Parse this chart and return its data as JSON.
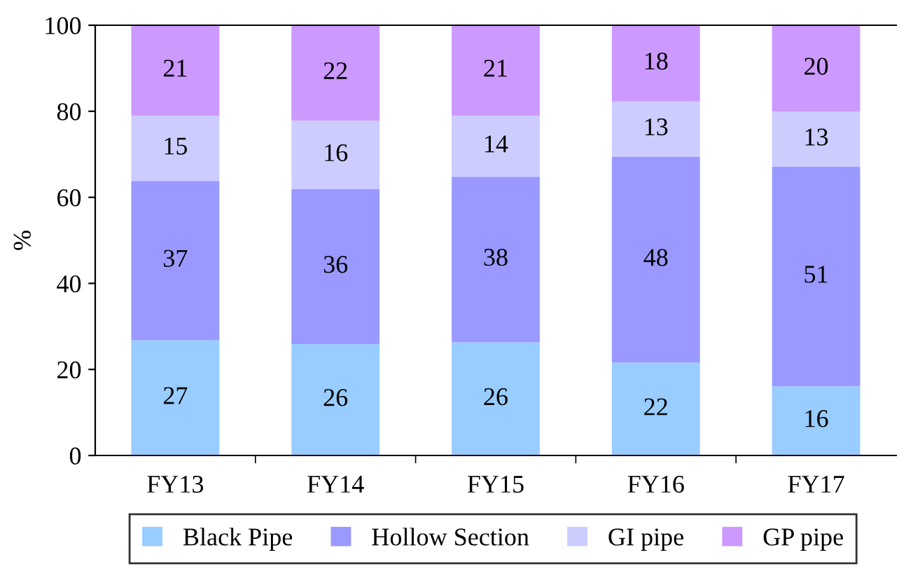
{
  "chart_data": {
    "type": "bar",
    "stacked": true,
    "ylabel": "%",
    "categories": [
      "FY13",
      "FY14",
      "FY15",
      "FY16",
      "FY17"
    ],
    "series": [
      {
        "name": "Black Pipe",
        "color": "#99ccff",
        "values": [
          26.8,
          25.9,
          26.3,
          21.6,
          16.1
        ],
        "value_labels": [
          "27",
          "26",
          "26",
          "22",
          "16"
        ]
      },
      {
        "name": "Hollow Section",
        "color": "#9999ff",
        "values": [
          37.0,
          36.0,
          38.5,
          47.8,
          51.0
        ],
        "value_labels": [
          "37",
          "36",
          "38",
          "48",
          "51"
        ]
      },
      {
        "name": "GI pipe",
        "color": "#ccccff",
        "values": [
          15.2,
          15.9,
          14.2,
          12.9,
          12.8
        ],
        "value_labels": [
          "15",
          "16",
          "14",
          "13",
          "13"
        ]
      },
      {
        "name": "GP pipe",
        "color": "#cc99ff",
        "values": [
          21.0,
          22.2,
          21.0,
          17.7,
          20.1
        ],
        "value_labels": [
          "21",
          "22",
          "21",
          "18",
          "20"
        ]
      }
    ],
    "ylim": [
      0,
      100
    ],
    "yticks": [
      0,
      20,
      40,
      60,
      80,
      100
    ],
    "legend": "bottom",
    "grid": false
  }
}
